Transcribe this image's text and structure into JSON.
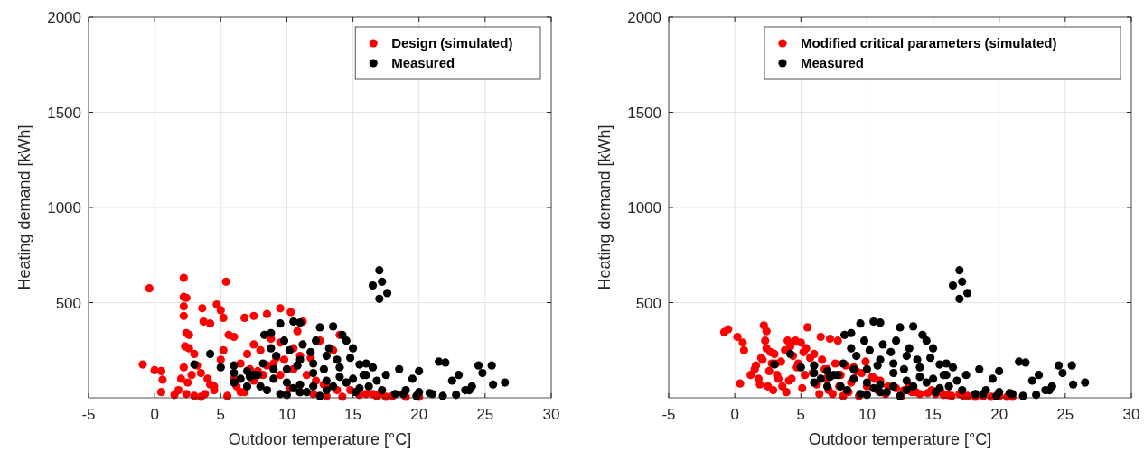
{
  "chart_data": [
    {
      "type": "scatter",
      "xlabel": "Outdoor temperature [°C]",
      "ylabel": "Heating demand [kWh]",
      "xlim": [
        -5,
        30
      ],
      "ylim": [
        0,
        2000
      ],
      "xticks": [
        -5,
        0,
        5,
        10,
        15,
        20,
        25,
        30
      ],
      "yticks": [
        500,
        1000,
        1500,
        2000
      ],
      "grid": true,
      "legend": "top right",
      "marker": "circle",
      "series": [
        {
          "name": "Design (simulated)",
          "color": "#ff0000",
          "x": [
            -0.9,
            -0.4,
            0,
            0.5,
            0.5,
            0.6,
            2.2,
            2.2,
            2.4,
            2.2,
            2.2,
            2.4,
            2.6,
            2.3,
            2.6,
            3,
            2.2,
            2.8,
            2,
            2.5,
            1.8,
            2.4,
            3.6,
            3.7,
            4.2,
            4.7,
            5.4,
            5.2,
            5,
            3.2,
            3.5,
            4,
            4.5,
            5,
            5.6,
            6,
            6.8,
            7.5,
            8.5,
            9.5,
            10.3,
            11.2,
            8.8,
            9.5,
            10.5,
            11,
            8,
            7.5,
            7,
            6.5,
            7.2,
            1.5,
            3,
            3.8,
            4.5,
            5.5,
            6.2,
            6.8,
            7.5,
            8.2,
            9,
            9.8,
            10.5,
            11.5,
            12.2,
            13,
            13.8,
            14.5,
            16,
            16.8,
            17.5,
            12.5,
            13.5,
            14,
            11.8,
            10.8,
            9.2,
            8.5,
            7.8,
            6,
            5.2,
            4.2,
            9.5,
            10.2,
            11,
            12,
            13,
            14.2,
            15.5,
            16.5,
            18,
            19,
            20,
            3.5,
            6.5,
            12.8,
            14.8,
            17
          ],
          "values": [
            175,
            575,
            145,
            140,
            30,
            95,
            630,
            530,
            525,
            480,
            430,
            340,
            330,
            270,
            260,
            230,
            160,
            120,
            100,
            80,
            40,
            20,
            470,
            400,
            390,
            490,
            610,
            420,
            460,
            170,
            130,
            100,
            60,
            200,
            330,
            320,
            420,
            430,
            440,
            470,
            450,
            400,
            310,
            290,
            260,
            220,
            250,
            280,
            230,
            180,
            150,
            15,
            10,
            20,
            40,
            10,
            60,
            30,
            90,
            120,
            180,
            200,
            150,
            120,
            90,
            60,
            40,
            80,
            20,
            10,
            5,
            300,
            250,
            330,
            210,
            350,
            210,
            170,
            140,
            100,
            250,
            70,
            120,
            50,
            30,
            20,
            10,
            5,
            15,
            20,
            10,
            5,
            5,
            5,
            30,
            70,
            40,
            20
          ]
        },
        {
          "name": "Measured",
          "color": "#000000",
          "x": [
            3,
            4.2,
            5,
            6,
            6,
            7,
            8.3,
            8.8,
            9.5,
            10.5,
            11,
            12.5,
            13.5,
            14.5,
            15,
            16.5,
            17,
            17.2,
            17,
            17.6,
            15.5,
            16,
            16.5,
            17.5,
            18.5,
            19.5,
            20,
            21.5,
            22,
            22.5,
            23,
            24.5,
            24.8,
            25.5,
            25.6,
            26.5,
            24,
            23.5,
            21,
            20,
            19,
            6.5,
            7.5,
            8,
            9,
            10,
            11,
            12,
            13,
            14,
            15,
            16,
            7,
            8.5,
            9.5,
            10.5,
            11.5,
            12.5,
            13.5,
            14.5,
            15.5,
            6,
            7.2,
            8.2,
            9.2,
            10.2,
            11.2,
            12.2,
            13.2,
            14.2,
            15.2,
            16.2,
            17.2,
            18.2,
            12,
            13,
            14,
            11,
            10,
            9,
            13.8,
            12.8,
            11.8,
            10.8,
            9.8,
            8.8,
            7.8,
            18.8,
            19.8,
            22.8,
            21.8,
            20.8,
            23.8,
            16.8,
            15.8,
            14.8,
            13,
            12,
            11,
            10
          ],
          "values": [
            175,
            230,
            160,
            170,
            130,
            140,
            330,
            340,
            390,
            400,
            395,
            370,
            375,
            300,
            260,
            590,
            670,
            610,
            520,
            550,
            175,
            180,
            160,
            120,
            150,
            100,
            140,
            190,
            185,
            90,
            120,
            170,
            130,
            170,
            70,
            80,
            60,
            40,
            20,
            30,
            40,
            100,
            120,
            60,
            150,
            80,
            200,
            180,
            220,
            160,
            100,
            120,
            60,
            40,
            20,
            50,
            30,
            10,
            60,
            80,
            50,
            80,
            110,
            180,
            220,
            250,
            280,
            300,
            260,
            330,
            30,
            60,
            40,
            20,
            130,
            90,
            110,
            70,
            150,
            100,
            200,
            150,
            240,
            170,
            300,
            260,
            120,
            20,
            10,
            15,
            10,
            25,
            40,
            90,
            120,
            210,
            40,
            60,
            30,
            15
          ]
        }
      ]
    },
    {
      "type": "scatter",
      "xlabel": "Outdoor temperature [°C]",
      "ylabel": "Heating demand [kWh]",
      "xlim": [
        -5,
        30
      ],
      "ylim": [
        0,
        2000
      ],
      "xticks": [
        -5,
        0,
        5,
        10,
        15,
        20,
        25,
        30
      ],
      "yticks": [
        500,
        1000,
        1500,
        2000
      ],
      "grid": true,
      "legend": "top right",
      "marker": "circle",
      "series": [
        {
          "name": "Modified critical parameters (simulated)",
          "color": "#ff0000",
          "x": [
            -0.8,
            -0.5,
            0.2,
            0.6,
            0.7,
            0.4,
            1.8,
            1.5,
            2.2,
            2.4,
            2.3,
            2.4,
            2.1,
            2.6,
            3,
            3.5,
            3.3,
            2.9,
            4,
            4.2,
            4.6,
            5,
            5.2,
            5.5,
            5.7,
            6.5,
            7.2,
            7.8,
            8,
            9,
            10,
            1.2,
            1.6,
            2,
            2.8,
            3.2,
            3.8,
            4.4,
            4.8,
            5.4,
            6,
            6.6,
            7,
            7.6,
            8.4,
            9.2,
            10.4,
            11,
            11.6,
            12.2,
            12.8,
            13.4,
            14,
            14.6,
            15.2,
            15.8,
            16.4,
            17,
            17.6,
            18.2,
            18.8,
            19.4,
            20,
            20.6,
            21,
            3.6,
            4.1,
            5.9,
            6.9,
            8.8,
            9.6,
            10.8,
            5.1,
            6.2,
            7.4,
            8.6,
            9.4,
            3.9,
            4.7,
            6.4,
            7.1,
            8.2,
            2.5,
            11.4,
            12.6,
            13.7,
            14.9,
            16.1,
            9.9,
            10.6,
            5.3,
            6.8,
            7.9,
            4.3,
            3.1,
            2.7,
            1.9,
            13.2,
            15.6,
            17.3
          ],
          "values": [
            345,
            360,
            320,
            290,
            250,
            75,
            100,
            150,
            380,
            350,
            300,
            260,
            200,
            140,
            230,
            190,
            100,
            40,
            300,
            270,
            300,
            290,
            240,
            370,
            210,
            320,
            310,
            300,
            120,
            160,
            60,
            120,
            170,
            210,
            180,
            120,
            250,
            220,
            180,
            260,
            230,
            200,
            150,
            180,
            170,
            140,
            110,
            90,
            60,
            50,
            40,
            30,
            20,
            25,
            20,
            15,
            10,
            20,
            10,
            5,
            10,
            5,
            8,
            5,
            5,
            60,
            90,
            130,
            100,
            80,
            130,
            40,
            50,
            70,
            20,
            30,
            10,
            30,
            160,
            20,
            40,
            10,
            60,
            20,
            10,
            30,
            40,
            15,
            190,
            100,
            120,
            150,
            60,
            100,
            180,
            240,
            70,
            60,
            30,
            10
          ]
        },
        {
          "name": "Measured",
          "color": "#000000",
          "x": [
            3,
            4.2,
            5,
            6,
            6,
            7,
            8.3,
            8.8,
            9.5,
            10.5,
            11,
            12.5,
            13.5,
            14.5,
            15,
            16.5,
            17,
            17.2,
            17,
            17.6,
            15.5,
            16,
            16.5,
            17.5,
            18.5,
            19.5,
            20,
            21.5,
            22,
            22.5,
            23,
            24.5,
            24.8,
            25.5,
            25.6,
            26.5,
            24,
            23.5,
            21,
            20,
            19,
            6.5,
            7.5,
            8,
            9,
            10,
            11,
            12,
            13,
            14,
            15,
            16,
            7,
            8.5,
            9.5,
            10.5,
            11.5,
            12.5,
            13.5,
            14.5,
            15.5,
            6,
            7.2,
            8.2,
            9.2,
            10.2,
            11.2,
            12.2,
            13.2,
            14.2,
            15.2,
            16.2,
            17.2,
            18.2,
            12,
            13,
            14,
            11,
            10,
            9,
            13.8,
            12.8,
            11.8,
            10.8,
            9.8,
            8.8,
            7.8,
            18.8,
            19.8,
            22.8,
            21.8,
            20.8,
            23.8,
            16.8,
            15.8,
            14.8,
            13,
            12,
            11,
            10
          ],
          "values": [
            175,
            230,
            160,
            170,
            130,
            140,
            330,
            340,
            390,
            400,
            395,
            370,
            375,
            300,
            260,
            590,
            670,
            610,
            520,
            550,
            175,
            180,
            160,
            120,
            150,
            100,
            140,
            190,
            185,
            90,
            120,
            170,
            130,
            170,
            70,
            80,
            60,
            40,
            20,
            30,
            40,
            100,
            120,
            60,
            150,
            80,
            200,
            180,
            220,
            160,
            100,
            120,
            60,
            40,
            20,
            50,
            30,
            10,
            60,
            80,
            50,
            80,
            110,
            180,
            220,
            250,
            280,
            300,
            260,
            330,
            30,
            60,
            40,
            20,
            130,
            90,
            110,
            70,
            150,
            100,
            200,
            150,
            240,
            170,
            300,
            260,
            120,
            20,
            10,
            15,
            10,
            25,
            40,
            90,
            120,
            210,
            40,
            60,
            30,
            15
          ]
        }
      ]
    }
  ]
}
